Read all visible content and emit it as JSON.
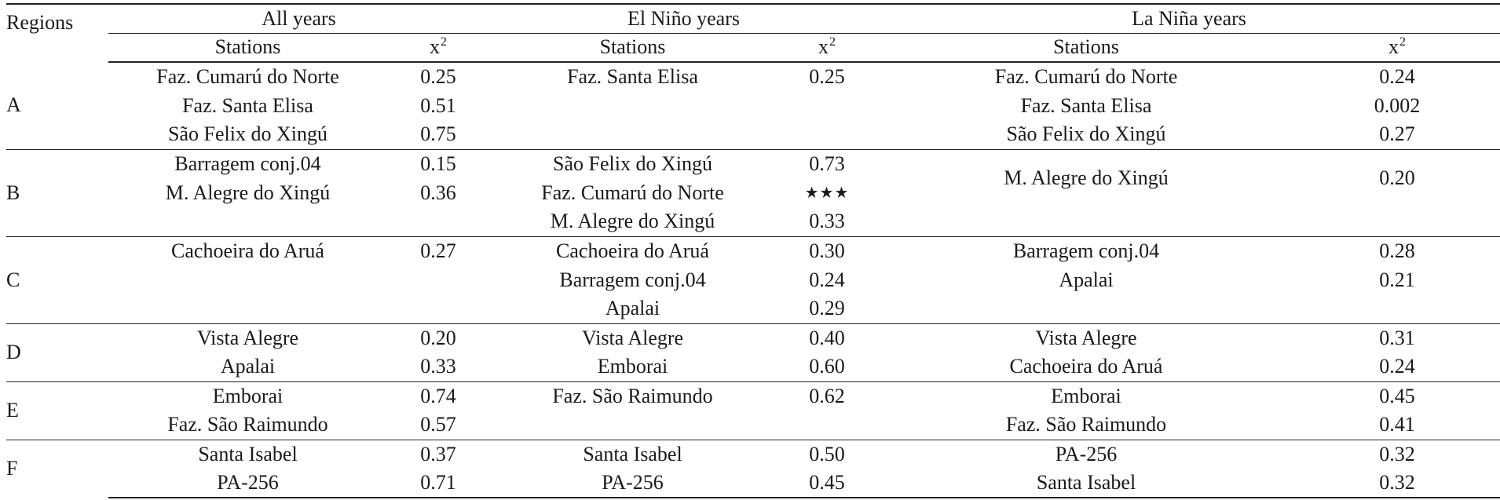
{
  "table": {
    "region_header": "Regions",
    "groups": [
      "All years",
      "El Niño years",
      "La Niña years"
    ],
    "stations_label": "Stations",
    "x_label": "x",
    "x_sup": "2",
    "regions": [
      {
        "name": "A",
        "rows": [
          [
            "Faz. Cumarú do Norte",
            "0.25",
            "Faz. Santa Elisa",
            "0.25",
            "Faz. Cumarú do Norte",
            "0.24"
          ],
          [
            "Faz. Santa Elisa",
            "0.51",
            "",
            "",
            "Faz. Santa Elisa",
            "0.002"
          ],
          [
            "São Felix do Xingú",
            "0.75",
            "",
            "",
            "São Felix do Xingú",
            "0.27"
          ]
        ]
      },
      {
        "name": "B",
        "rows": [
          [
            "Barragem conj.04",
            "0.15",
            "São Felix do Xingú",
            "0.73",
            "M. Alegre do Xingú",
            "0.20"
          ],
          [
            "M. Alegre do Xingú",
            "0.36",
            "Faz. Cumarú do Norte",
            "★★★",
            "",
            ""
          ],
          [
            "",
            "",
            "M. Alegre do Xingú",
            "0.33",
            "",
            ""
          ]
        ]
      },
      {
        "name": "C",
        "rows": [
          [
            "Cachoeira do Aruá",
            "0.27",
            "Cachoeira do Aruá",
            "0.30",
            "Barragem conj.04",
            "0.28"
          ],
          [
            "",
            "",
            "Barragem conj.04",
            "0.24",
            "Apalai",
            "0.21"
          ],
          [
            "",
            "",
            "Apalai",
            "0.29",
            "",
            ""
          ]
        ]
      },
      {
        "name": "D",
        "rows": [
          [
            "Vista Alegre",
            "0.20",
            "Vista Alegre",
            "0.40",
            "Vista Alegre",
            "0.31"
          ],
          [
            "Apalai",
            "0.33",
            "Emborai",
            "0.60",
            "Cachoeira do Aruá",
            "0.24"
          ]
        ]
      },
      {
        "name": "E",
        "rows": [
          [
            "Emborai",
            "0.74",
            "Faz. São Raimundo",
            "0.62",
            "Emborai",
            "0.45"
          ],
          [
            "Faz. São Raimundo",
            "0.57",
            "",
            "",
            "Faz. São Raimundo",
            "0.41"
          ]
        ]
      },
      {
        "name": "F",
        "rows": [
          [
            "Santa Isabel",
            "0.37",
            "Santa Isabel",
            "0.50",
            "PA-256",
            "0.32"
          ],
          [
            "PA-256",
            "0.71",
            "PA-256",
            "0.45",
            "Santa Isabel",
            "0.32"
          ]
        ]
      }
    ]
  }
}
